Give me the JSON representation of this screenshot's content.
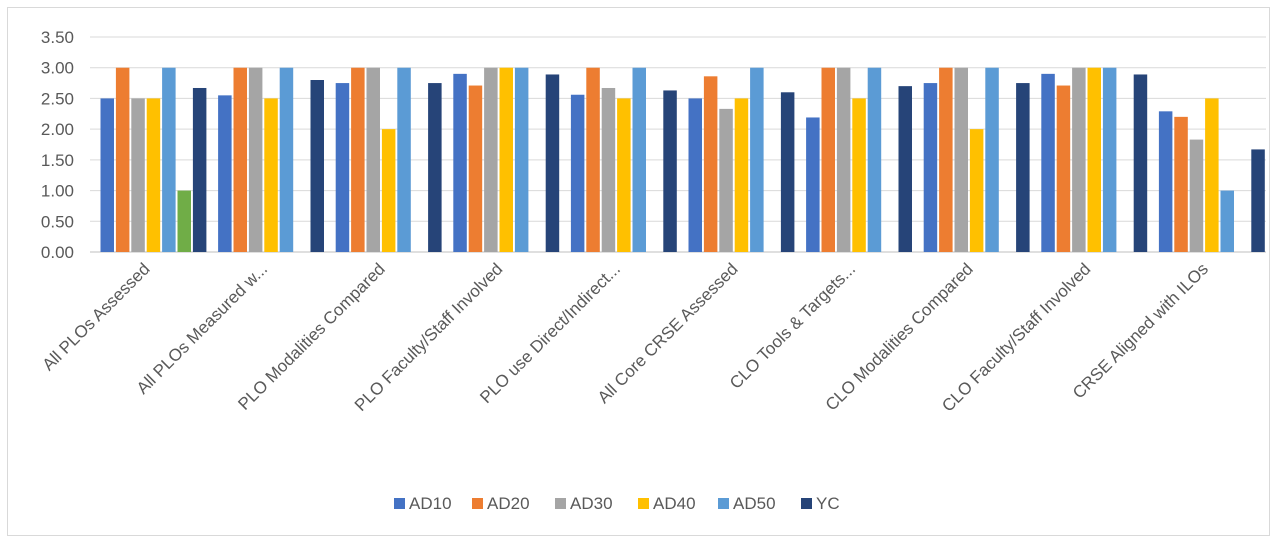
{
  "chart_data": {
    "type": "bar",
    "title": "",
    "xlabel": "",
    "ylabel": "",
    "ylim": [
      0,
      3.5
    ],
    "yticks": [
      "0.00",
      "0.50",
      "1.00",
      "1.50",
      "2.00",
      "2.50",
      "3.00",
      "3.50"
    ],
    "grid": true,
    "legend_position": "bottom",
    "categories": [
      "All PLOs Assessed",
      "All PLOs Measured w...",
      "PLO Modalities Compared",
      "PLO Faculty/Staff Involved",
      "PLO use Direct/Indirect...",
      "All Core CRSE Assessed",
      "CLO Tools & Targets...",
      "CLO Modalities Compared",
      "CLO Faculty/Staff Involved",
      "CRSE Aligned with ILOs"
    ],
    "series": [
      {
        "name": "AD10",
        "color": "#4472C4",
        "values": [
          2.5,
          2.55,
          2.75,
          2.9,
          2.56,
          2.5,
          2.19,
          2.75,
          2.9,
          2.29
        ]
      },
      {
        "name": "AD20",
        "color": "#ED7D31",
        "values": [
          3.0,
          3.0,
          3.0,
          2.71,
          3.0,
          2.86,
          3.0,
          3.0,
          2.71,
          2.2
        ]
      },
      {
        "name": "AD30",
        "color": "#A5A5A5",
        "values": [
          2.5,
          3.0,
          3.0,
          3.0,
          2.67,
          2.33,
          3.0,
          3.0,
          3.0,
          1.83
        ]
      },
      {
        "name": "AD40",
        "color": "#FFC000",
        "values": [
          2.5,
          2.5,
          2.0,
          3.0,
          2.5,
          2.5,
          2.5,
          2.0,
          3.0,
          2.5
        ]
      },
      {
        "name": "AD50",
        "color": "#5B9BD5",
        "values": [
          3.0,
          3.0,
          3.0,
          3.0,
          3.0,
          3.0,
          3.0,
          3.0,
          3.0,
          1.0
        ]
      },
      {
        "name": "",
        "color": "#70AD47",
        "values": [
          1.0,
          null,
          null,
          null,
          null,
          null,
          null,
          null,
          null,
          null
        ]
      },
      {
        "name": "YC",
        "color": "#264478",
        "values": [
          2.67,
          2.8,
          2.75,
          2.89,
          2.63,
          2.6,
          2.7,
          2.75,
          2.89,
          1.67
        ]
      }
    ]
  }
}
